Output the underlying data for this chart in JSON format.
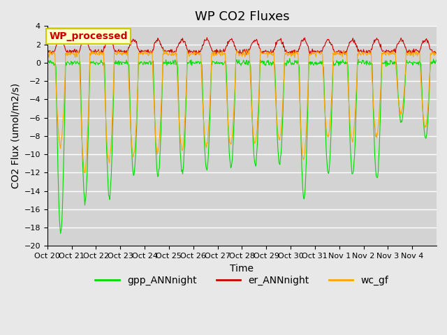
{
  "title": "WP CO2 Fluxes",
  "xlabel": "Time",
  "ylabel_display": "CO2 Flux (umol/m2/s)",
  "ylim": [
    -20,
    4
  ],
  "bg_color": "#e8e8e8",
  "plot_bg_color": "#d3d3d3",
  "grid_color": "white",
  "line_colors": {
    "gpp": "#00dd00",
    "er": "#cc0000",
    "wc": "#ffa500"
  },
  "legend_labels": {
    "gpp": "gpp_ANNnight",
    "er": "er_ANNnight",
    "wc": "wc_gf"
  },
  "annotation_text": "WP_processed",
  "annotation_color": "#cc0000",
  "annotation_bg": "#ffffcc",
  "annotation_edge": "#cccc00",
  "x_tick_labels": [
    "Oct 20",
    "Oct 21",
    "Oct 22",
    "Oct 23",
    "Oct 24",
    "Oct 25",
    "Oct 26",
    "Oct 27",
    "Oct 28",
    "Oct 29",
    "Oct 30",
    "Oct 31",
    "Nov 1",
    "Nov 2",
    "Nov 3",
    "Nov 4"
  ],
  "n_days": 16,
  "points_per_day": 48,
  "title_fontsize": 13,
  "axis_fontsize": 10,
  "tick_fontsize": 8,
  "legend_fontsize": 10,
  "gpp_depths": [
    -18.5,
    -15.2,
    -14.8,
    -12.2,
    -12.4,
    -12.0,
    -11.8,
    -11.5,
    -11.2,
    -11.0,
    -14.8,
    -12.1,
    -12.3,
    -12.8,
    -6.5,
    -8.2
  ],
  "wc_depths": [
    -9.0,
    -12.0,
    -10.8,
    -10.3,
    -9.8,
    -9.5,
    -9.2,
    -9.0,
    -8.8,
    -8.5,
    -10.5,
    -8.2,
    -8.5,
    -8.0,
    -5.5,
    -7.0
  ]
}
